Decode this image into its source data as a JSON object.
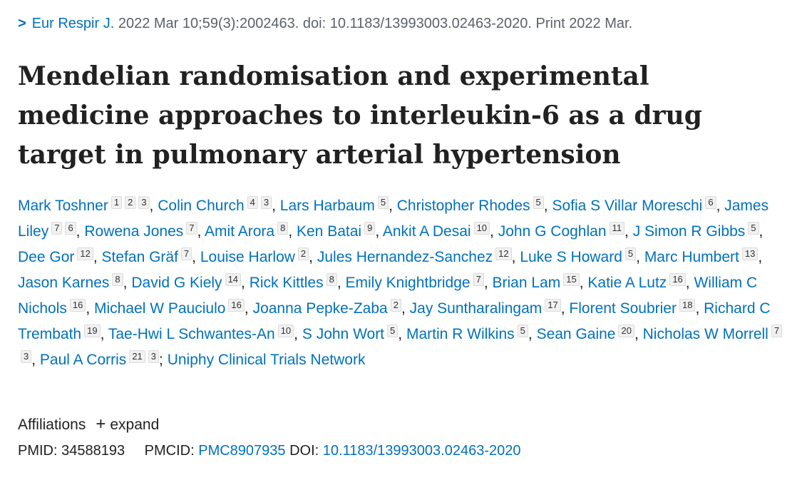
{
  "citation": {
    "journal": "Eur Respir J.",
    "details": "2022 Mar 10;59(3):2002463. doi: 10.1183/13993003.02463-2020. Print 2022 Mar."
  },
  "title": "Mendelian randomisation and experimental medicine approaches to interleukin-6 as a drug target in pulmonary arterial hypertension",
  "author_separator": ",",
  "group_separator": ";",
  "authors": [
    {
      "name": "Mark Toshner",
      "affiliations": [
        1,
        2,
        3
      ]
    },
    {
      "name": "Colin Church",
      "affiliations": [
        4,
        3
      ]
    },
    {
      "name": "Lars Harbaum",
      "affiliations": [
        5
      ]
    },
    {
      "name": "Christopher Rhodes",
      "affiliations": [
        5
      ]
    },
    {
      "name": "Sofia S Villar Moreschi",
      "affiliations": [
        6
      ]
    },
    {
      "name": "James Liley",
      "affiliations": [
        7,
        6
      ]
    },
    {
      "name": "Rowena Jones",
      "affiliations": [
        7
      ]
    },
    {
      "name": "Amit Arora",
      "affiliations": [
        8
      ]
    },
    {
      "name": "Ken Batai",
      "affiliations": [
        9
      ]
    },
    {
      "name": "Ankit A Desai",
      "affiliations": [
        10
      ]
    },
    {
      "name": "John G Coghlan",
      "affiliations": [
        11
      ]
    },
    {
      "name": "J Simon R Gibbs",
      "affiliations": [
        5
      ]
    },
    {
      "name": "Dee Gor",
      "affiliations": [
        12
      ]
    },
    {
      "name": "Stefan Gräf",
      "affiliations": [
        7
      ]
    },
    {
      "name": "Louise Harlow",
      "affiliations": [
        2
      ]
    },
    {
      "name": "Jules Hernandez-Sanchez",
      "affiliations": [
        12
      ]
    },
    {
      "name": "Luke S Howard",
      "affiliations": [
        5
      ]
    },
    {
      "name": "Marc Humbert",
      "affiliations": [
        13
      ]
    },
    {
      "name": "Jason Karnes",
      "affiliations": [
        8
      ]
    },
    {
      "name": "David G Kiely",
      "affiliations": [
        14
      ]
    },
    {
      "name": "Rick Kittles",
      "affiliations": [
        8
      ]
    },
    {
      "name": "Emily Knightbridge",
      "affiliations": [
        7
      ]
    },
    {
      "name": "Brian Lam",
      "affiliations": [
        15
      ]
    },
    {
      "name": "Katie A Lutz",
      "affiliations": [
        16
      ]
    },
    {
      "name": "William C Nichols",
      "affiliations": [
        16
      ]
    },
    {
      "name": "Michael W Pauciulo",
      "affiliations": [
        16
      ]
    },
    {
      "name": "Joanna Pepke-Zaba",
      "affiliations": [
        2
      ]
    },
    {
      "name": "Jay Suntharalingam",
      "affiliations": [
        17
      ]
    },
    {
      "name": "Florent Soubrier",
      "affiliations": [
        18
      ]
    },
    {
      "name": "Richard C Trembath",
      "affiliations": [
        19
      ]
    },
    {
      "name": "Tae-Hwi L Schwantes-An",
      "affiliations": [
        10
      ]
    },
    {
      "name": "S John Wort",
      "affiliations": [
        5
      ]
    },
    {
      "name": "Martin R Wilkins",
      "affiliations": [
        5
      ]
    },
    {
      "name": "Sean Gaine",
      "affiliations": [
        20
      ]
    },
    {
      "name": "Nicholas W Morrell",
      "affiliations": [
        7,
        3
      ]
    },
    {
      "name": "Paul A Corris",
      "affiliations": [
        21,
        3
      ]
    }
  ],
  "group_author": "Uniphy Clinical Trials Network",
  "affiliations_toggle": {
    "label": "Affiliations",
    "action": "expand"
  },
  "identifiers": {
    "pmid_label": "PMID:",
    "pmid": "34588193",
    "pmcid_label": "PMCID:",
    "pmcid": "PMC8907935",
    "doi_label": "DOI:",
    "doi": "10.1183/13993003.02463-2020"
  }
}
